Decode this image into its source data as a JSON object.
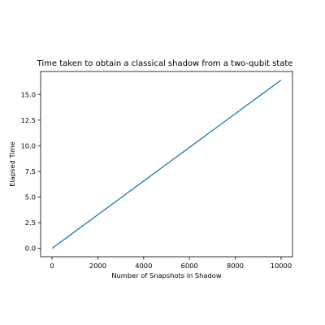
{
  "chart_data": {
    "type": "line",
    "title": "Time taken to obtain a classical shadow from a two-qubit state",
    "xlabel": "Number of Snapshots in Shadow",
    "ylabel": "Elapsed Time",
    "xlim": [
      -500,
      10500
    ],
    "ylim": [
      -0.82,
      17.24
    ],
    "xticks": [
      0,
      2000,
      4000,
      6000,
      8000,
      10000
    ],
    "yticks": [
      0.0,
      2.5,
      5.0,
      7.5,
      10.0,
      12.5,
      15.0
    ],
    "xtick_labels": [
      "0",
      "2000",
      "4000",
      "6000",
      "8000",
      "10000"
    ],
    "ytick_labels": [
      "0.0",
      "2.5",
      "5.0",
      "7.5",
      "10.0",
      "12.5",
      "15.0"
    ],
    "grid": false,
    "series": [
      {
        "color": "#1f77b4",
        "x": [
          0,
          1000,
          2000,
          3000,
          4000,
          5000,
          6000,
          7000,
          8000,
          9000,
          10000
        ],
        "y": [
          0.0,
          1.64,
          3.28,
          4.92,
          6.56,
          8.2,
          9.84,
          11.48,
          13.12,
          14.76,
          16.4
        ]
      }
    ]
  }
}
